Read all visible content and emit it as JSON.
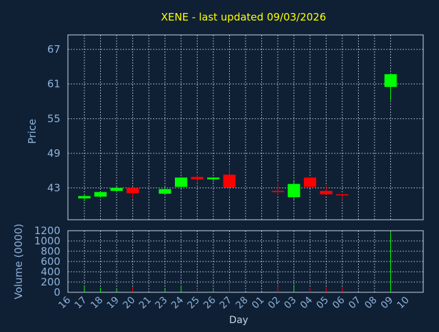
{
  "colors": {
    "background": "#0f2035",
    "up": "#00ff00",
    "down": "#ff0000",
    "grid": "#c8d8e8",
    "frame": "#c8d8e8",
    "text": "#8fb3d9",
    "title": "#ffff00"
  },
  "chart_data": [
    {
      "type": "candlestick",
      "title": "XENE - last updated 09/03/2026",
      "ylabel": "Price",
      "ylim": [
        37.5,
        69.5
      ],
      "yticks": [
        43,
        49,
        55,
        61,
        67
      ],
      "grid": true,
      "categories": [
        "17",
        "18",
        "19",
        "20",
        "23",
        "24",
        "25",
        "26",
        "27",
        "02",
        "03",
        "04",
        "05",
        "06",
        "09"
      ],
      "ohlc": [
        {
          "x": "17",
          "open": 41.2,
          "high": 42.0,
          "low": 40.7,
          "close": 41.6
        },
        {
          "x": "18",
          "open": 41.5,
          "high": 42.4,
          "low": 41.3,
          "close": 42.3
        },
        {
          "x": "19",
          "open": 42.5,
          "high": 43.2,
          "low": 42.3,
          "close": 43.0
        },
        {
          "x": "20",
          "open": 43.0,
          "high": 43.2,
          "low": 41.2,
          "close": 42.1
        },
        {
          "x": "23",
          "open": 42.0,
          "high": 43.3,
          "low": 41.9,
          "close": 42.8
        },
        {
          "x": "24",
          "open": 43.2,
          "high": 44.9,
          "low": 43.1,
          "close": 44.8
        },
        {
          "x": "25",
          "open": 44.9,
          "high": 45.3,
          "low": 43.8,
          "close": 44.5
        },
        {
          "x": "26",
          "open": 44.5,
          "high": 44.9,
          "low": 44.0,
          "close": 44.8
        },
        {
          "x": "27",
          "open": 45.3,
          "high": 46.8,
          "low": 41.7,
          "close": 43.1
        },
        {
          "x": "02",
          "open": 42.5,
          "high": 43.9,
          "low": 41.8,
          "close": 42.3
        },
        {
          "x": "03",
          "open": 41.4,
          "high": 44.3,
          "low": 41.1,
          "close": 43.7
        },
        {
          "x": "04",
          "open": 44.8,
          "high": 44.9,
          "low": 43.1,
          "close": 43.2
        },
        {
          "x": "05",
          "open": 42.5,
          "high": 43.5,
          "low": 41.8,
          "close": 41.9
        },
        {
          "x": "06",
          "open": 41.9,
          "high": 42.0,
          "low": 40.9,
          "close": 41.8
        },
        {
          "x": "09",
          "open": 60.5,
          "high": 62.9,
          "low": 58.2,
          "close": 62.7
        }
      ]
    },
    {
      "type": "bar",
      "ylabel": "Volume (0000)",
      "xlabel": "Day",
      "ylim": [
        0,
        1200
      ],
      "yticks": [
        0,
        200,
        400,
        600,
        800,
        1000,
        1200
      ],
      "grid": true,
      "xticks": [
        "16",
        "17",
        "18",
        "19",
        "20",
        "21",
        "23",
        "24",
        "25",
        "26",
        "27",
        "28",
        "01",
        "02",
        "03",
        "04",
        "05",
        "06",
        "07",
        "08",
        "09",
        "10"
      ],
      "categories": [
        "17",
        "18",
        "19",
        "20",
        "23",
        "24",
        "25",
        "26",
        "27",
        "02",
        "03",
        "04",
        "05",
        "06",
        "09"
      ],
      "values": [
        120,
        90,
        60,
        100,
        60,
        130,
        70,
        40,
        180,
        120,
        150,
        80,
        90,
        100,
        1170
      ]
    }
  ]
}
